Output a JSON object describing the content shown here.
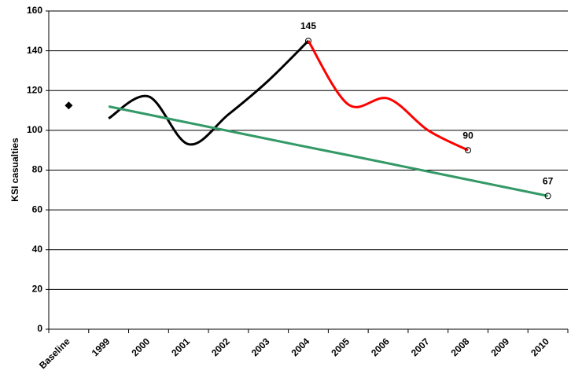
{
  "chart_data": {
    "type": "line",
    "y_label": "KSI casualties",
    "categories": [
      "Baseline",
      "1999",
      "2000",
      "2001",
      "2002",
      "2003",
      "2004",
      "2005",
      "2006",
      "2007",
      "2008",
      "2009",
      "2010"
    ],
    "series": [
      {
        "color": "#000000",
        "marker": "diamond",
        "values": [
          112.5,
          null,
          null,
          null,
          null,
          null,
          null,
          null,
          null,
          null,
          null,
          null,
          null
        ]
      },
      {
        "color": "#000000",
        "smooth": true,
        "values": [
          null,
          106,
          117,
          93,
          108,
          125,
          145,
          null,
          null,
          null,
          null,
          null,
          null
        ]
      },
      {
        "color": "#ff0000",
        "smooth": true,
        "values": [
          null,
          null,
          null,
          null,
          null,
          null,
          145,
          113,
          116,
          100,
          90,
          null,
          null
        ]
      },
      {
        "color": "#339966",
        "smooth": false,
        "values": [
          null,
          112,
          107.9,
          103.8,
          99.7,
          95.6,
          91.5,
          87.5,
          83.4,
          79.3,
          75.2,
          71.1,
          67
        ]
      }
    ],
    "ylim": [
      0,
      160
    ],
    "yticks": [
      0,
      20,
      40,
      60,
      80,
      100,
      120,
      140,
      160
    ],
    "grid": true
  }
}
